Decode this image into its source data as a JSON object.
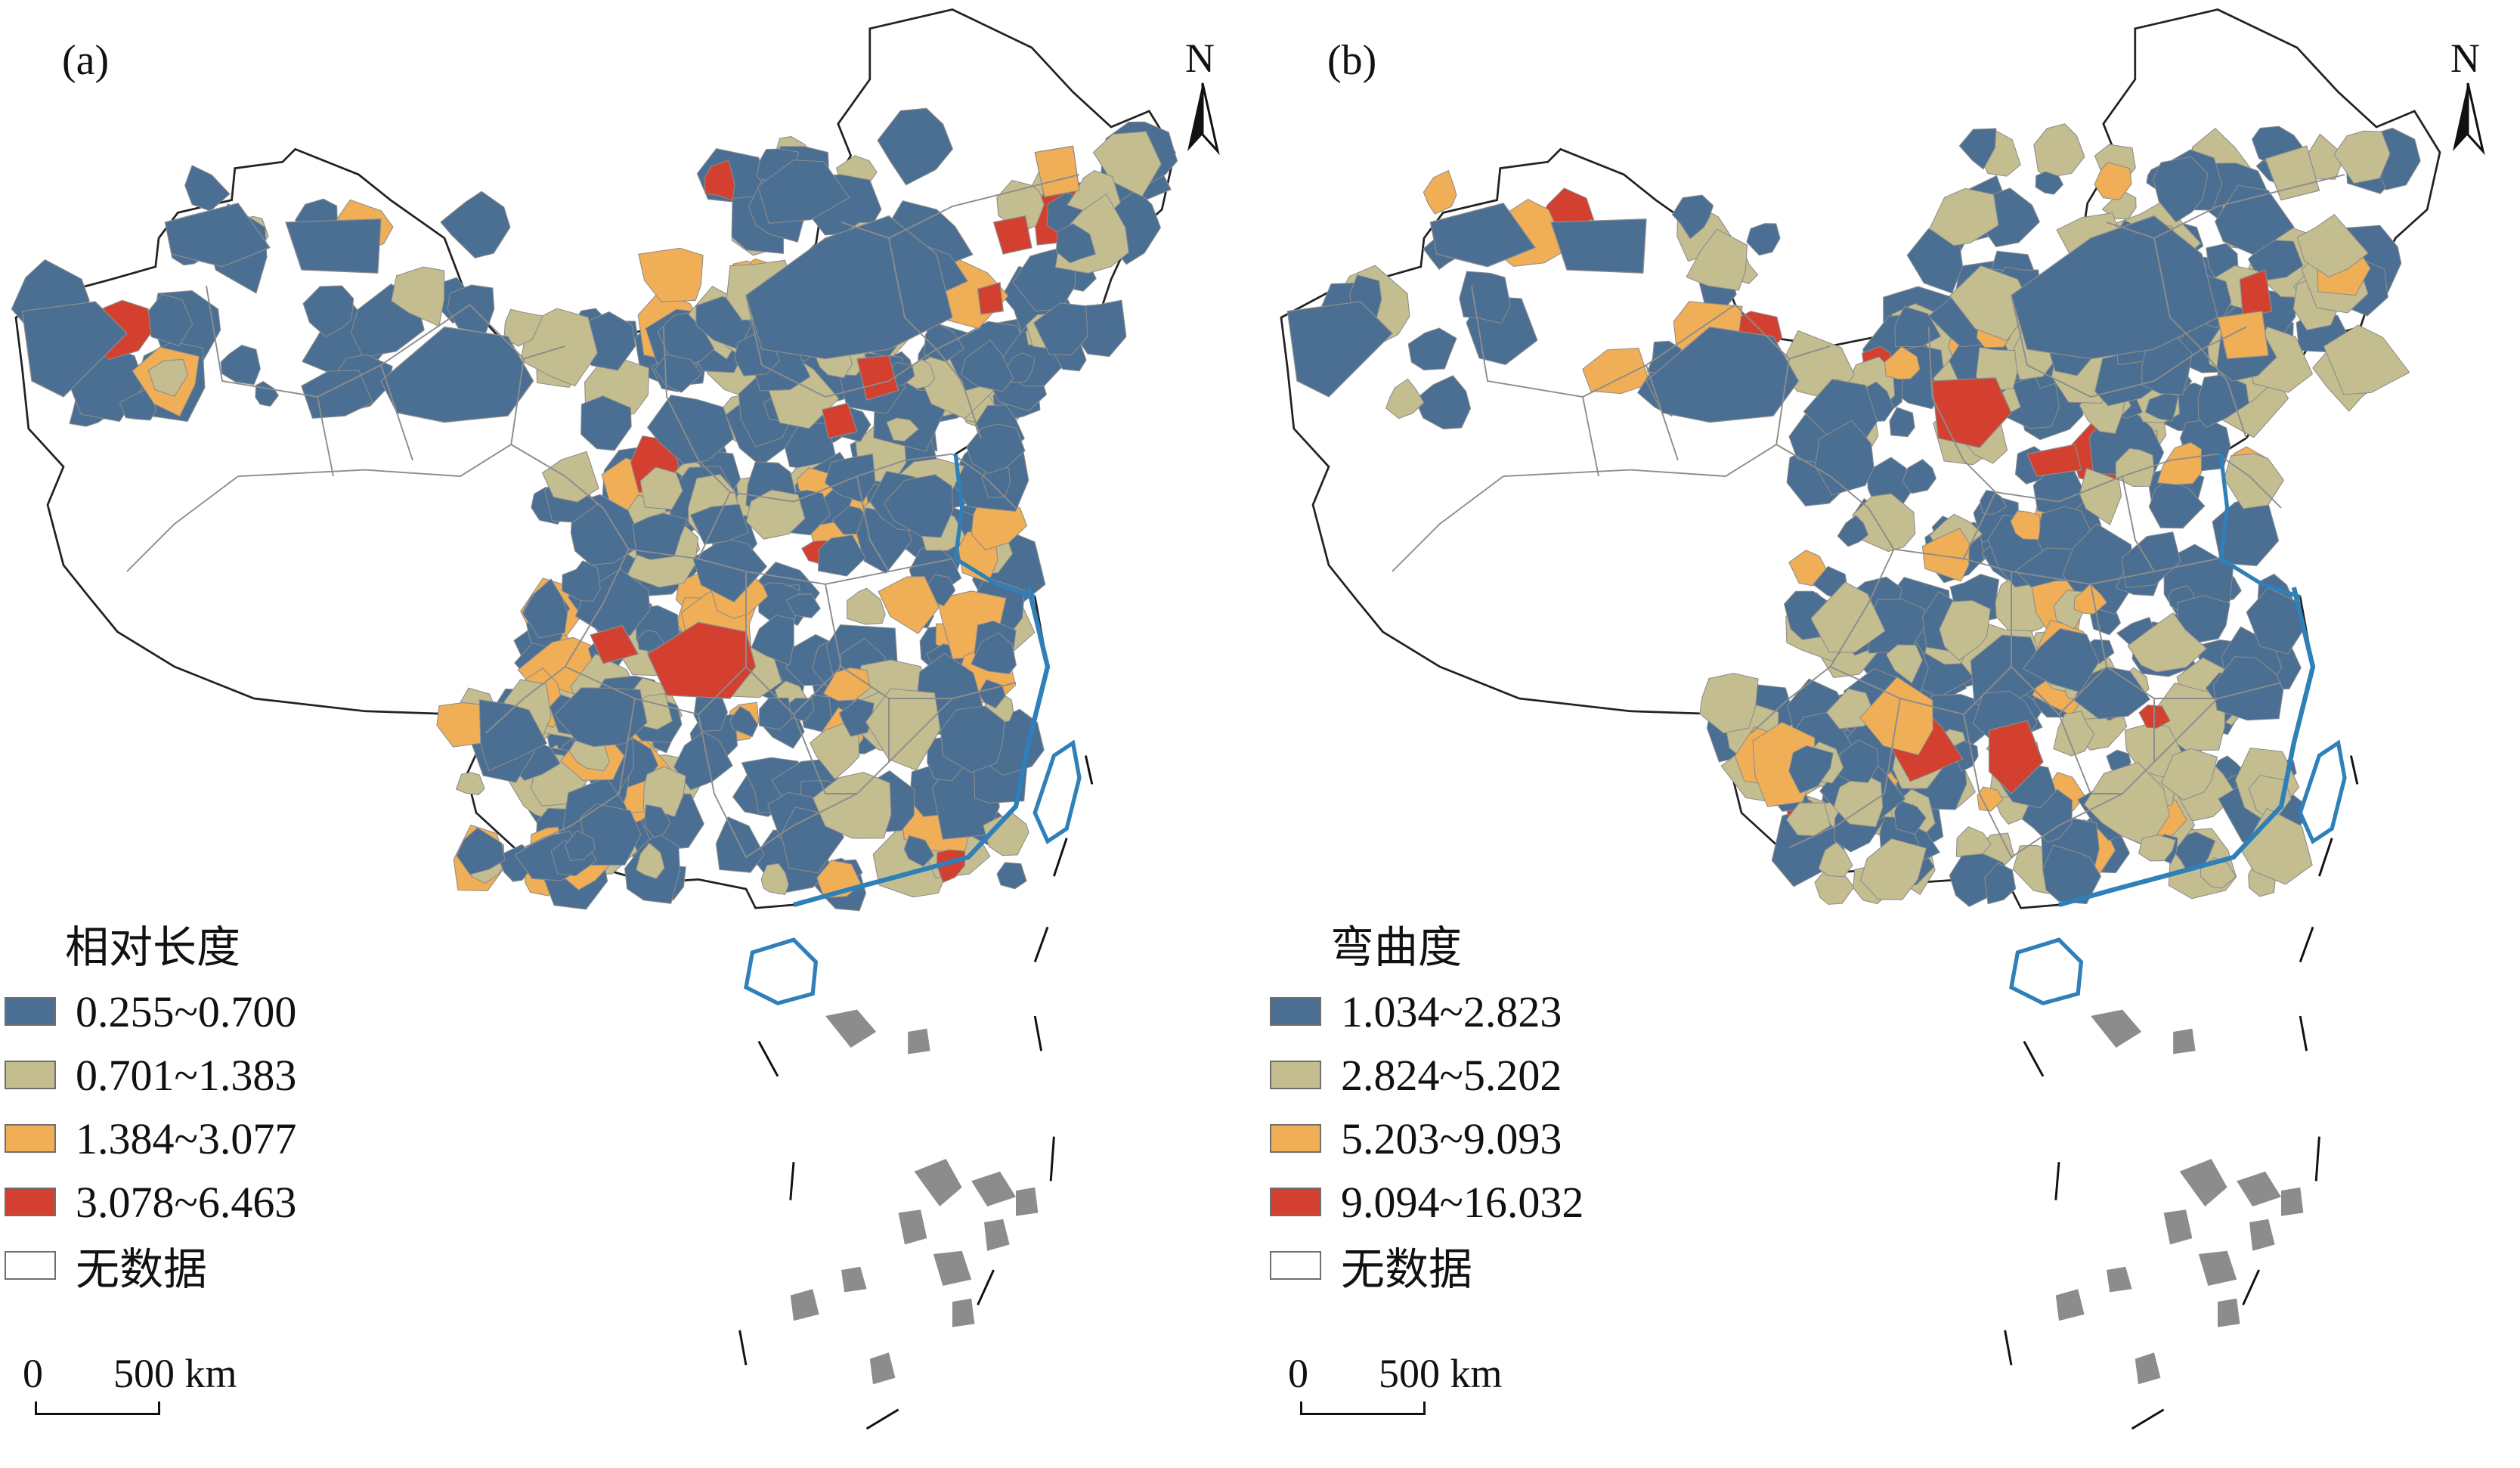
{
  "colors": {
    "class1": "#4a6f93",
    "class2": "#c4bd90",
    "class3": "#f0ae57",
    "class4": "#d3402f",
    "nodata": "#ffffff",
    "boundary": "#8c8c8c",
    "coast": "#2f7fb8",
    "border": "#222222"
  },
  "north_label": "N",
  "scale": {
    "zero": "0",
    "label": "500 km"
  },
  "panels": [
    {
      "label": "(a)",
      "legend_title": "相对长度",
      "legend": [
        {
          "label": "0.255~0.700",
          "class": "class1"
        },
        {
          "label": "0.701~1.383",
          "class": "class2"
        },
        {
          "label": "1.384~3.077",
          "class": "class3"
        },
        {
          "label": "3.078~6.463",
          "class": "class4"
        },
        {
          "label": "无数据",
          "class": "nodata"
        }
      ]
    },
    {
      "label": "(b)",
      "legend_title": "弯曲度",
      "legend": [
        {
          "label": "1.034~2.823",
          "class": "class1"
        },
        {
          "label": "2.824~5.202",
          "class": "class2"
        },
        {
          "label": "5.203~9.093",
          "class": "class3"
        },
        {
          "label": "9.094~16.032",
          "class": "class4"
        },
        {
          "label": "无数据",
          "class": "nodata"
        }
      ]
    }
  ]
}
